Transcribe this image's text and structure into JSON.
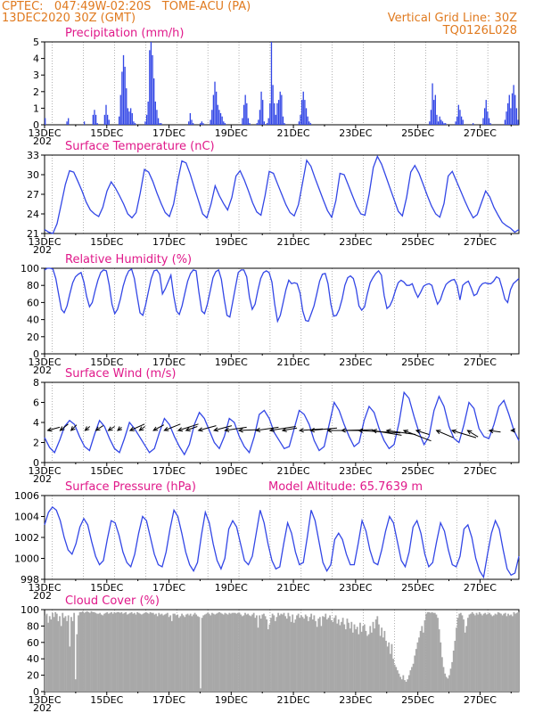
{
  "header": {
    "line1": "CPTEC:   047:49W-02:20S   TOME-ACU (PA)",
    "line2": "13DEC2020 30Z (GMT)",
    "right1": "Vertical Grid Line: 30Z",
    "right2": "TQ0126L028"
  },
  "colors": {
    "header": "#e07a1f",
    "title": "#e0198a",
    "series": "#3347e6",
    "cloud": "#a8a8a8"
  },
  "x_axis": {
    "labels": [
      "13DEC",
      "15DEC",
      "17DEC",
      "19DEC",
      "21DEC",
      "23DEC",
      "25DEC",
      "27DEC"
    ],
    "truncated": "202"
  },
  "chart_data": [
    {
      "type": "bar",
      "title": "Precipitation (mm/h)",
      "ylim": [
        0,
        5
      ],
      "yticks": [
        "0",
        "1",
        "2",
        "3",
        "4",
        "5"
      ],
      "values": [
        0.4,
        0,
        0,
        0,
        0,
        0,
        0,
        0,
        0,
        0,
        0,
        0,
        0,
        0,
        0,
        0.2,
        0.4,
        0,
        0,
        0,
        0,
        0,
        0,
        0,
        0,
        0,
        0,
        0.2,
        0,
        0,
        0,
        0,
        0,
        0.6,
        0.9,
        0.6,
        0.1,
        0,
        0,
        0,
        0,
        0.6,
        1.2,
        0.6,
        0.3,
        0,
        0,
        0,
        0,
        0,
        0,
        0.5,
        1.8,
        3.2,
        4.2,
        3.5,
        2.2,
        1.0,
        0.8,
        1.0,
        0.7,
        0.2,
        0.1,
        0,
        0,
        0,
        0,
        0,
        0,
        0.2,
        0.6,
        1.4,
        4.5,
        5.0,
        4.2,
        2.8,
        1.4,
        0.9,
        0.4,
        0.1,
        0.1,
        0,
        0,
        0,
        0,
        0,
        0,
        0,
        0,
        0,
        0,
        0,
        0,
        0,
        0,
        0,
        0,
        0,
        0,
        0.2,
        0.7,
        0.3,
        0.1,
        0,
        0,
        0,
        0,
        0.1,
        0.2,
        0.1,
        0,
        0,
        0,
        0,
        0.3,
        0.9,
        1.8,
        2.6,
        2.0,
        1.2,
        0.9,
        0.7,
        0.5,
        0.2,
        0.1,
        0,
        0,
        0,
        0,
        0,
        0,
        0,
        0,
        0,
        0,
        0,
        0.4,
        1.2,
        1.8,
        1.3,
        0.4,
        0.1,
        0,
        0,
        0,
        0,
        0.1,
        0.3,
        0.9,
        2.0,
        1.5,
        0.2,
        0,
        0.1,
        0.4,
        1.3,
        5.0,
        2.4,
        1.3,
        0.6,
        1.3,
        1.5,
        2.0,
        1.8,
        0.5,
        0.1,
        0,
        0,
        0,
        0,
        0,
        0,
        0,
        0,
        0,
        0.2,
        0.6,
        1.5,
        2.0,
        1.5,
        1.0,
        0.5,
        0.2,
        0.1,
        0,
        0,
        0,
        0,
        0,
        0,
        0,
        0,
        0,
        0,
        0,
        0,
        0,
        0,
        0,
        0,
        0,
        0,
        0,
        0,
        0,
        0,
        0,
        0,
        0,
        0,
        0,
        0,
        0,
        0,
        0,
        0,
        0,
        0,
        0,
        0,
        0,
        0,
        0,
        0,
        0,
        0,
        0,
        0,
        0,
        0,
        0,
        0,
        0,
        0,
        0,
        0,
        0,
        0,
        0,
        0,
        0,
        0,
        0,
        0,
        0,
        0,
        0,
        0,
        0,
        0,
        0,
        0,
        0,
        0,
        0,
        0,
        0,
        0,
        0,
        0,
        0,
        0,
        0,
        0,
        0,
        0.2,
        0.9,
        2.5,
        1.5,
        1.8,
        0.6,
        0.2,
        0.5,
        0.3,
        0.2,
        0.1,
        0.1,
        0,
        0,
        0,
        0,
        0,
        0,
        0.2,
        0.5,
        1.2,
        0.9,
        0.5,
        0.3,
        0,
        0,
        0,
        0,
        0,
        0,
        0.1,
        0,
        0,
        0,
        0,
        0,
        0,
        0.4,
        1.0,
        1.5,
        0.8,
        0.4,
        0.1,
        0,
        0,
        0,
        0,
        0,
        0,
        0,
        0,
        0,
        0.3,
        0.8,
        1.3,
        1.8,
        1.0,
        1.9,
        2.4,
        1.8,
        1.0,
        0.3
      ]
    },
    {
      "type": "line",
      "title": "Surface Temperature (nC)",
      "ylim": [
        21,
        33
      ],
      "yticks": [
        "21",
        "24",
        "27",
        "30",
        "33"
      ],
      "values": [
        21.6,
        21.2,
        21.0,
        22.5,
        25.5,
        28.5,
        30.6,
        30.4,
        29.0,
        27.5,
        25.8,
        24.6,
        24.0,
        23.6,
        25.0,
        27.5,
        28.9,
        28.0,
        26.8,
        25.5,
        24.0,
        23.4,
        24.2,
        27.2,
        30.8,
        30.4,
        29.0,
        27.2,
        25.6,
        24.2,
        23.6,
        25.5,
        29.0,
        32.1,
        31.8,
        30.1,
        28.0,
        26.0,
        24.0,
        23.4,
        25.5,
        28.3,
        26.8,
        25.6,
        24.6,
        26.5,
        29.8,
        30.6,
        29.2,
        27.5,
        25.7,
        24.3,
        23.8,
        26.8,
        30.5,
        30.2,
        28.6,
        27.0,
        25.4,
        24.2,
        23.7,
        25.4,
        28.7,
        32.2,
        31.3,
        29.5,
        27.8,
        26.1,
        24.5,
        23.5,
        26.0,
        30.2,
        30.0,
        28.4,
        26.8,
        25.2,
        24.0,
        23.8,
        27.0,
        31.1,
        32.8,
        31.6,
        29.8,
        28.0,
        26.2,
        24.4,
        23.7,
        26.5,
        30.4,
        31.4,
        30.2,
        28.5,
        26.8,
        25.2,
        24.0,
        23.5,
        25.6,
        29.8,
        30.5,
        29.0,
        27.5,
        26.0,
        24.6,
        23.4,
        23.9,
        25.7,
        27.5,
        26.6,
        25.0,
        23.8,
        22.7,
        22.2,
        21.8,
        21.2,
        21.6
      ]
    },
    {
      "type": "line",
      "title": "Relative Humidity (%)",
      "ylim": [
        0,
        100
      ],
      "yticks": [
        "0",
        "20",
        "40",
        "60",
        "80",
        "100"
      ],
      "values": [
        98,
        100,
        100,
        99,
        88,
        70,
        52,
        48,
        56,
        70,
        83,
        90,
        93,
        95,
        84,
        67,
        55,
        60,
        74,
        86,
        95,
        98,
        97,
        81,
        58,
        47,
        52,
        64,
        79,
        90,
        97,
        99,
        88,
        67,
        48,
        45,
        57,
        73,
        88,
        97,
        98,
        93,
        70,
        76,
        84,
        92,
        68,
        50,
        46,
        56,
        71,
        85,
        94,
        98,
        97,
        72,
        50,
        47,
        58,
        73,
        89,
        96,
        98,
        87,
        64,
        45,
        43,
        60,
        78,
        95,
        98,
        98,
        90,
        66,
        52,
        58,
        74,
        88,
        95,
        97,
        95,
        84,
        58,
        38,
        45,
        60,
        75,
        86,
        82,
        83,
        82,
        71,
        50,
        39,
        38,
        47,
        56,
        70,
        85,
        93,
        94,
        82,
        58,
        44,
        45,
        52,
        64,
        80,
        89,
        91,
        88,
        76,
        56,
        51,
        55,
        70,
        83,
        89,
        94,
        97,
        92,
        68,
        53,
        56,
        63,
        74,
        83,
        86,
        84,
        80,
        80,
        82,
        73,
        66,
        72,
        79,
        81,
        82,
        80,
        68,
        58,
        63,
        73,
        81,
        84,
        86,
        87,
        80,
        63,
        80,
        83,
        85,
        77,
        68,
        70,
        78,
        82,
        83,
        82,
        82,
        85,
        90,
        88,
        77,
        64,
        60,
        75,
        82,
        85,
        88
      ]
    },
    {
      "type": "line",
      "title": "Surface Wind (m/s)",
      "ylim": [
        0,
        8
      ],
      "yticks": [
        "0",
        "2",
        "4",
        "6",
        "8"
      ],
      "values": [
        2.5,
        1.5,
        1.0,
        2.2,
        3.6,
        4.2,
        3.8,
        2.6,
        1.6,
        1.2,
        2.8,
        4.2,
        3.6,
        2.4,
        1.4,
        1.0,
        2.4,
        4.0,
        3.4,
        2.6,
        1.8,
        1.0,
        1.4,
        3.0,
        4.4,
        3.8,
        2.6,
        1.6,
        0.8,
        1.8,
        3.8,
        5.0,
        4.4,
        3.2,
        2.0,
        1.4,
        2.6,
        4.4,
        4.0,
        2.6,
        1.6,
        1.0,
        2.6,
        4.8,
        5.2,
        4.4,
        3.0,
        2.2,
        1.4,
        1.6,
        3.4,
        5.2,
        4.8,
        3.8,
        2.2,
        1.2,
        1.6,
        3.8,
        6.0,
        5.2,
        3.8,
        2.6,
        1.6,
        2.0,
        4.2,
        5.6,
        5.0,
        3.4,
        2.2,
        1.4,
        1.8,
        4.0,
        7.0,
        6.4,
        4.6,
        3.0,
        1.8,
        2.6,
        5.2,
        6.6,
        5.6,
        3.6,
        2.4,
        2.0,
        3.8,
        6.0,
        5.4,
        3.4,
        2.6,
        2.4,
        3.8,
        5.6,
        6.2,
        4.8,
        3.2,
        2.2
      ]
    },
    {
      "type": "line",
      "title": "Surface Pressure (hPa)",
      "ylim": [
        998,
        1006
      ],
      "yticks": [
        "998",
        "1000",
        "1002",
        "1004",
        "1006"
      ],
      "values": [
        1003.2,
        1004.4,
        1004.9,
        1004.6,
        1003.6,
        1002.0,
        1000.8,
        1000.4,
        1001.4,
        1003.0,
        1003.8,
        1003.2,
        1001.6,
        1000.2,
        999.4,
        999.8,
        1001.8,
        1003.6,
        1003.4,
        1002.2,
        1000.6,
        999.6,
        999.2,
        1000.4,
        1002.4,
        1004.0,
        1003.6,
        1002.0,
        1000.4,
        999.4,
        999.2,
        1000.6,
        1002.8,
        1004.6,
        1004.0,
        1002.4,
        1000.6,
        999.4,
        998.8,
        999.6,
        1002.2,
        1004.4,
        1003.4,
        1001.4,
        999.8,
        999.0,
        1000.0,
        1002.8,
        1003.6,
        1003.0,
        1001.4,
        999.8,
        999.4,
        1000.2,
        1002.4,
        1004.6,
        1003.4,
        1001.4,
        999.8,
        999.0,
        999.2,
        1001.4,
        1003.4,
        1002.4,
        1000.6,
        999.4,
        999.6,
        1002.0,
        1004.6,
        1003.6,
        1001.6,
        999.6,
        998.8,
        999.4,
        1001.8,
        1002.4,
        1001.8,
        1000.4,
        999.4,
        999.4,
        1001.4,
        1003.6,
        1002.6,
        1000.8,
        999.6,
        999.4,
        1000.8,
        1002.6,
        1004.0,
        1003.4,
        1001.6,
        999.8,
        999.2,
        1000.6,
        1003.0,
        1003.6,
        1002.4,
        1000.4,
        999.2,
        999.6,
        1001.6,
        1003.4,
        1002.6,
        1000.8,
        999.4,
        999.2,
        1000.2,
        1002.8,
        1003.2,
        1002.0,
        1000.0,
        998.8,
        998.2,
        1000.4,
        1002.4,
        1003.6,
        1002.8,
        1000.8,
        999.0,
        998.4,
        998.6,
        1000.2
      ]
    },
    {
      "type": "area",
      "title": "Cloud Cover (%)",
      "ylim": [
        0,
        100
      ],
      "yticks": [
        "0",
        "20",
        "40",
        "60",
        "80",
        "100"
      ],
      "values": [
        93,
        95,
        84,
        92,
        88,
        96,
        91,
        97,
        95,
        86,
        92,
        80,
        96,
        90,
        92,
        86,
        93,
        55,
        91,
        86,
        96,
        15,
        70,
        93,
        97,
        97,
        98,
        96,
        97,
        98,
        97,
        96,
        98,
        97,
        97,
        96,
        95,
        95,
        96,
        94,
        93,
        95,
        96,
        97,
        95,
        96,
        97,
        95,
        97,
        96,
        97,
        97,
        96,
        97,
        95,
        96,
        97,
        94,
        95,
        96,
        97,
        95,
        96,
        94,
        97,
        96,
        95,
        94,
        95,
        96,
        97,
        96,
        95,
        97,
        96,
        96,
        94,
        95,
        92,
        96,
        94,
        95,
        93,
        94,
        95,
        96,
        91,
        93,
        86,
        95,
        95,
        93,
        94,
        90,
        92,
        95,
        93,
        91,
        94,
        95,
        93,
        95,
        92,
        94,
        96,
        94,
        92,
        91,
        4,
        90,
        93,
        94,
        95,
        96,
        95,
        93,
        96,
        95,
        94,
        95,
        96,
        97,
        96,
        95,
        94,
        96,
        95,
        94,
        96,
        95,
        96,
        96,
        96,
        95,
        96,
        96,
        94,
        92,
        93,
        96,
        94,
        95,
        93,
        92,
        94,
        96,
        90,
        93,
        78,
        93,
        89,
        94,
        95,
        92,
        88,
        76,
        82,
        90,
        95,
        93,
        86,
        91,
        96,
        93,
        95,
        94,
        96,
        92,
        89,
        96,
        92,
        85,
        94,
        84,
        88,
        93,
        95,
        90,
        93,
        91,
        89,
        94,
        92,
        86,
        91,
        95,
        88,
        93,
        86,
        79,
        89,
        91,
        80,
        92,
        91,
        95,
        88,
        90,
        93,
        87,
        85,
        90,
        93,
        83,
        88,
        81,
        85,
        90,
        82,
        76,
        89,
        84,
        77,
        85,
        72,
        82,
        76,
        79,
        70,
        84,
        73,
        80,
        82,
        74,
        68,
        70,
        80,
        72,
        85,
        77,
        88,
        92,
        82,
        68,
        78,
        66,
        74,
        62,
        55,
        60,
        46,
        58,
        40,
        33,
        30,
        26,
        22,
        18,
        15,
        20,
        14,
        12,
        15,
        20,
        26,
        30,
        34,
        44,
        52,
        60,
        66,
        74,
        80,
        72,
        87,
        95,
        97,
        97,
        96,
        97,
        96,
        96,
        94,
        90,
        76,
        60,
        42,
        30,
        22,
        18,
        16,
        20,
        28,
        36,
        50,
        62,
        78,
        90,
        95,
        96,
        93,
        88,
        72,
        80,
        90,
        94,
        95,
        97,
        95,
        93,
        96,
        94,
        97,
        95,
        93,
        95,
        96,
        94,
        95,
        96,
        94,
        92,
        93,
        95,
        94,
        97,
        96,
        95,
        93,
        95,
        96,
        92,
        95,
        93,
        94,
        92,
        97,
        95,
        96,
        97
      ]
    }
  ],
  "wind_vectors": {
    "x_days": [
      0.1,
      0.5,
      0.85,
      1.3,
      1.65,
      2.05,
      2.35,
      2.75,
      3.05,
      3.5,
      3.85,
      4.3,
      4.55,
      4.95,
      5.45,
      5.8,
      6.25,
      6.8,
      7.25,
      7.65,
      8.2,
      8.55,
      9.1,
      9.55,
      10.1,
      10.55,
      11.0,
      11.55,
      11.95,
      12.6,
      13.1,
      13.6,
      14.3,
      15.0
    ],
    "u_m_s": [
      1.5,
      1.0,
      0.7,
      0.6,
      0.9,
      0.8,
      0.5,
      1.8,
      0.7,
      1.3,
      2.0,
      2.5,
      1.4,
      2.2,
      2.2,
      2.7,
      2.3,
      2.8,
      3.2,
      1.8,
      2.9,
      3.3,
      4.2,
      3.9,
      5.2,
      3.6,
      3.6,
      3.4,
      1.6,
      2.1,
      3.0,
      1.3,
      1.4,
      0.5
    ],
    "v_m_s": [
      0.4,
      0.8,
      0.7,
      0.5,
      0.6,
      0.5,
      0.4,
      0.8,
      0.5,
      0.7,
      0.8,
      0.8,
      0.5,
      0.6,
      0.6,
      0.4,
      0.1,
      0.4,
      0.5,
      0.3,
      0.2,
      0.3,
      0.0,
      0.1,
      -0.3,
      -0.6,
      -0.5,
      -1.3,
      -0.5,
      -0.9,
      -0.9,
      -0.8,
      -0.2,
      0.0
    ]
  },
  "model_altitude": "Model Altitude: 65.7639  m"
}
